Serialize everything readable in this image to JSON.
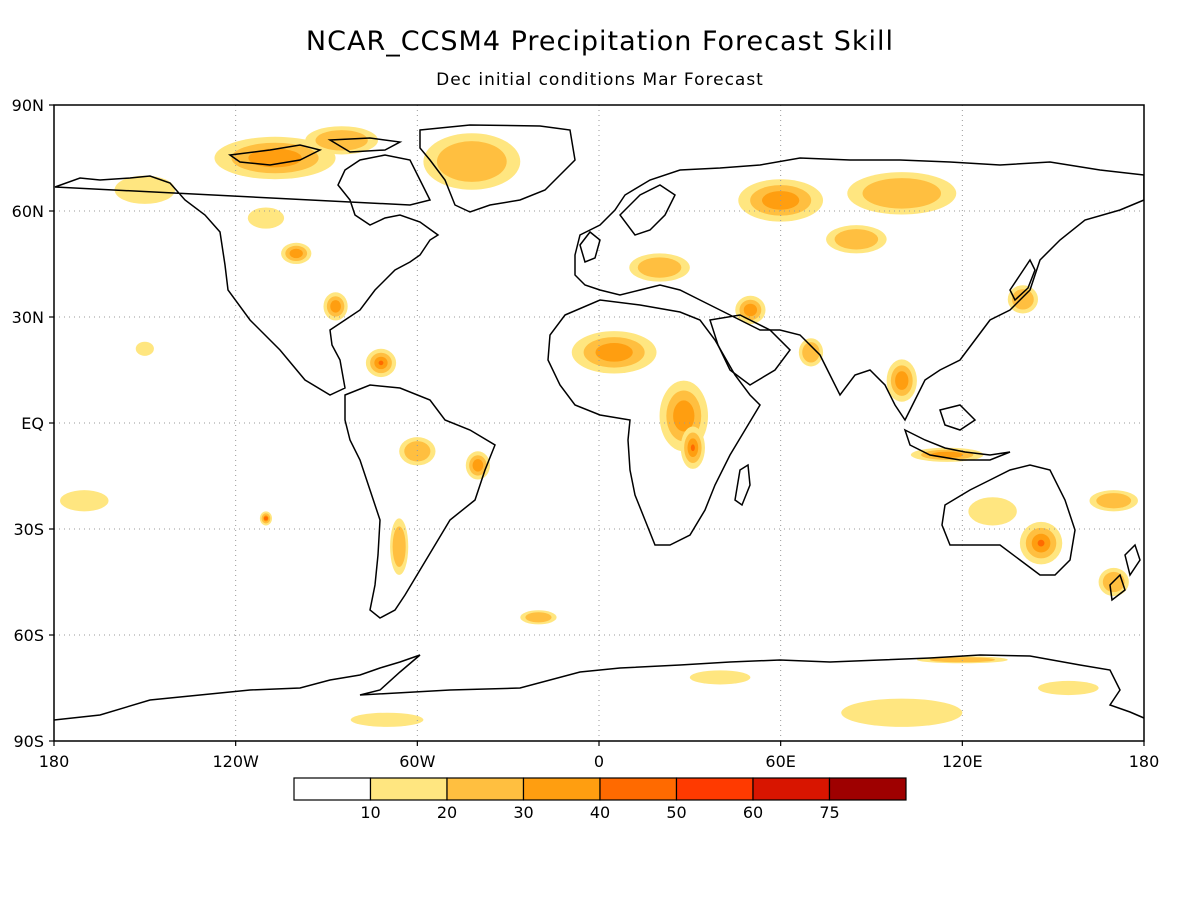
{
  "title": "NCAR_CCSM4 Precipitation Forecast Skill",
  "subtitle": "Dec initial conditions  Mar Forecast",
  "map": {
    "projection": "equirectangular",
    "lon_range": [
      -180,
      180
    ],
    "lat_range": [
      -90,
      90
    ],
    "grid": "dotted",
    "coastline_color": "#000000",
    "lat_ticks": [
      {
        "value": 90,
        "label": "90N"
      },
      {
        "value": 60,
        "label": "60N"
      },
      {
        "value": 30,
        "label": "30N"
      },
      {
        "value": 0,
        "label": "EQ"
      },
      {
        "value": -30,
        "label": "30S"
      },
      {
        "value": -60,
        "label": "60S"
      },
      {
        "value": -90,
        "label": "90S"
      }
    ],
    "lon_ticks": [
      {
        "value": -180,
        "label": "180"
      },
      {
        "value": -120,
        "label": "120W"
      },
      {
        "value": -60,
        "label": "60W"
      },
      {
        "value": 0,
        "label": "0"
      },
      {
        "value": 60,
        "label": "60E"
      },
      {
        "value": 120,
        "label": "120E"
      },
      {
        "value": 180,
        "label": "180"
      }
    ]
  },
  "colorbar": {
    "bins": [
      {
        "color": "#ffffff"
      },
      {
        "color": "#ffe680"
      },
      {
        "color": "#ffbf40"
      },
      {
        "color": "#ff9e10"
      },
      {
        "color": "#ff6a00"
      },
      {
        "color": "#ff3a00"
      },
      {
        "color": "#d81500"
      },
      {
        "color": "#9e0000"
      }
    ],
    "labels": [
      "10",
      "20",
      "30",
      "40",
      "50",
      "60",
      "75"
    ]
  },
  "skill_regions": [
    {
      "lon": -107,
      "lat": 75,
      "rx": 20,
      "ry": 6,
      "level": 3
    },
    {
      "lon": -85,
      "lat": 80,
      "rx": 12,
      "ry": 4,
      "level": 2
    },
    {
      "lon": -42,
      "lat": 74,
      "rx": 16,
      "ry": 8,
      "level": 2
    },
    {
      "lon": -150,
      "lat": 66,
      "rx": 10,
      "ry": 4,
      "level": 1
    },
    {
      "lon": -100,
      "lat": 48,
      "rx": 5,
      "ry": 3,
      "level": 3
    },
    {
      "lon": -87,
      "lat": 33,
      "rx": 4,
      "ry": 4,
      "level": 3
    },
    {
      "lon": -72,
      "lat": 17,
      "rx": 5,
      "ry": 4,
      "level": 4
    },
    {
      "lon": -150,
      "lat": 21,
      "rx": 3,
      "ry": 2,
      "level": 1
    },
    {
      "lon": -60,
      "lat": -8,
      "rx": 6,
      "ry": 4,
      "level": 2
    },
    {
      "lon": -40,
      "lat": -12,
      "rx": 4,
      "ry": 4,
      "level": 3
    },
    {
      "lon": -66,
      "lat": -35,
      "rx": 3,
      "ry": 8,
      "level": 2
    },
    {
      "lon": -110,
      "lat": -27,
      "rx": 2,
      "ry": 2,
      "level": 4
    },
    {
      "lon": -170,
      "lat": -22,
      "rx": 8,
      "ry": 3,
      "level": 1
    },
    {
      "lon": -20,
      "lat": -55,
      "rx": 6,
      "ry": 2,
      "level": 2
    },
    {
      "lon": 5,
      "lat": 20,
      "rx": 14,
      "ry": 6,
      "level": 3
    },
    {
      "lon": 28,
      "lat": 2,
      "rx": 8,
      "ry": 10,
      "level": 3
    },
    {
      "lon": 31,
      "lat": -7,
      "rx": 4,
      "ry": 6,
      "level": 4
    },
    {
      "lon": 20,
      "lat": 44,
      "rx": 10,
      "ry": 4,
      "level": 2
    },
    {
      "lon": 60,
      "lat": 63,
      "rx": 14,
      "ry": 6,
      "level": 3
    },
    {
      "lon": 100,
      "lat": 65,
      "rx": 18,
      "ry": 6,
      "level": 2
    },
    {
      "lon": 85,
      "lat": 52,
      "rx": 10,
      "ry": 4,
      "level": 2
    },
    {
      "lon": 50,
      "lat": 32,
      "rx": 5,
      "ry": 4,
      "level": 3
    },
    {
      "lon": 100,
      "lat": 12,
      "rx": 5,
      "ry": 6,
      "level": 3
    },
    {
      "lon": 115,
      "lat": -9,
      "rx": 12,
      "ry": 2,
      "level": 3
    },
    {
      "lon": 146,
      "lat": -34,
      "rx": 7,
      "ry": 6,
      "level": 4
    },
    {
      "lon": 130,
      "lat": -25,
      "rx": 8,
      "ry": 4,
      "level": 1
    },
    {
      "lon": 170,
      "lat": -22,
      "rx": 8,
      "ry": 3,
      "level": 2
    },
    {
      "lon": 170,
      "lat": -45,
      "rx": 5,
      "ry": 4,
      "level": 2
    },
    {
      "lon": 100,
      "lat": -82,
      "rx": 20,
      "ry": 4,
      "level": 1
    },
    {
      "lon": 155,
      "lat": -75,
      "rx": 10,
      "ry": 2,
      "level": 1
    },
    {
      "lon": 40,
      "lat": -72,
      "rx": 10,
      "ry": 2,
      "level": 1
    },
    {
      "lon": 120,
      "lat": -67,
      "rx": 15,
      "ry": 1,
      "level": 2
    },
    {
      "lon": -70,
      "lat": -84,
      "rx": 12,
      "ry": 2,
      "level": 1
    },
    {
      "lon": -110,
      "lat": 58,
      "rx": 6,
      "ry": 3,
      "level": 1
    },
    {
      "lon": 140,
      "lat": 35,
      "rx": 5,
      "ry": 4,
      "level": 2
    },
    {
      "lon": 70,
      "lat": 20,
      "rx": 4,
      "ry": 4,
      "level": 2
    }
  ]
}
